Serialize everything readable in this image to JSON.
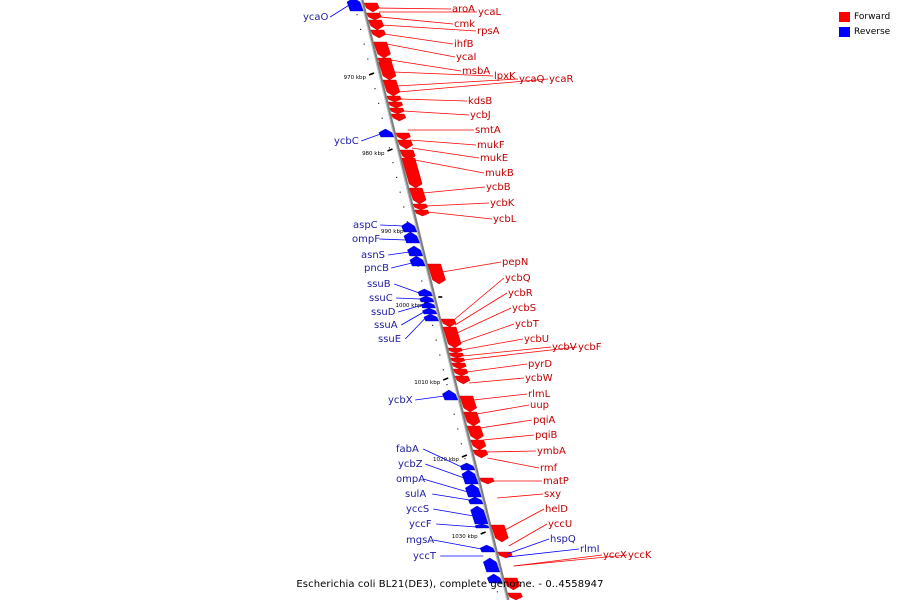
{
  "caption": "Escherichia coli BL21(DE3), complete genome. - 0..4558947",
  "legend": [
    {
      "label": "Forward",
      "color": "#ff0000"
    },
    {
      "label": "Reverse",
      "color": "#0000ff"
    }
  ],
  "colors": {
    "forward": "#ff0000",
    "reverse": "#0000ff",
    "backbone": "#7f7f7f"
  },
  "ticks": [
    "970 kbp",
    "980 kbp",
    "990 kbp",
    "1000 kbp",
    "1010 kbp",
    "1020 kbp",
    "1030 kbp"
  ],
  "forward_genes": [
    "aroA",
    "ycaL",
    "cmk",
    "rpsA",
    "ihfB",
    "ycaI",
    "msbA",
    "lpxK",
    "ycaQ",
    "ycaR",
    "kdsB",
    "ycbJ",
    "smtA",
    "mukF",
    "mukE",
    "mukB",
    "ycbB",
    "ycbK",
    "ycbL",
    "pepN",
    "ycbQ",
    "ycbR",
    "ycbS",
    "ycbT",
    "ycbU",
    "ycbV",
    "ycbF",
    "pyrD",
    "ycbW",
    "rlmL",
    "uup",
    "pqiA",
    "pqiB",
    "ymbA",
    "rmf",
    "matP",
    "sxy",
    "helD",
    "yccU",
    "yccX",
    "yccK"
  ],
  "reverse_genes": [
    "ycaO",
    "ycbC",
    "aspC",
    "ompF",
    "asnS",
    "pncB",
    "ssuB",
    "ssuC",
    "ssuD",
    "ssuA",
    "ssuE",
    "ycbX",
    "fabA",
    "ycbZ",
    "ompA",
    "sulA",
    "yccS",
    "yccF",
    "mgsA",
    "yccT",
    "hspQ",
    "rlmI"
  ]
}
